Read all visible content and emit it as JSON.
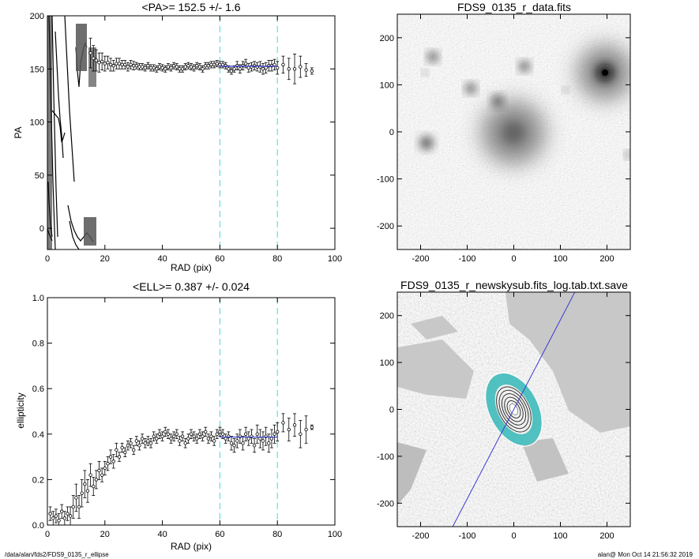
{
  "footer": {
    "path": "/data/alan/fds2/FDS9_0135_r_ellipse",
    "stamp": "alan@  Mon Oct 14 21:56:32 2019"
  },
  "colors": {
    "fit_line": "#3a3ad0",
    "range_marker": "#66dddd",
    "data_points": "#000000",
    "teal_ellipse": "#50c0c0"
  },
  "chart_data": [
    {
      "id": "pa_profile",
      "type": "scatter",
      "title": "<PA>= 152.5 +/-   1.6",
      "xlabel": "RAD (pix)",
      "ylabel": "PA",
      "xlim": [
        0,
        100
      ],
      "ylim": [
        -20,
        200
      ],
      "xticks": [
        "0",
        "20",
        "40",
        "60",
        "80",
        "100"
      ],
      "yticks": [
        "0",
        "50",
        "100",
        "150",
        "200"
      ],
      "xtick_values": [
        0,
        20,
        40,
        60,
        80,
        100
      ],
      "ytick_values": [
        0,
        50,
        100,
        150,
        200
      ],
      "fit_range": [
        60,
        80
      ],
      "fit_value": 152.5,
      "outer_points": {
        "x": [
          15,
          16,
          17,
          18,
          19,
          20,
          21,
          22,
          23,
          24,
          25,
          26,
          27,
          28,
          29,
          30,
          31,
          32,
          33,
          34,
          35,
          36,
          37,
          38,
          39,
          40,
          41,
          42,
          43,
          44,
          45,
          46,
          47,
          48,
          49,
          50,
          51,
          52,
          53,
          54,
          55,
          56,
          57,
          58,
          59,
          60,
          61,
          62,
          63,
          64,
          65,
          66,
          67,
          68,
          69,
          70,
          71,
          72,
          73,
          74,
          75,
          76,
          77,
          78,
          79,
          80,
          82,
          84,
          86,
          88,
          90,
          92
        ],
        "y": [
          165,
          160,
          158,
          156,
          157,
          155,
          156,
          154,
          153,
          155,
          155,
          154,
          154,
          152,
          154,
          153,
          153,
          152,
          152,
          151,
          153,
          151,
          151,
          150,
          152,
          151,
          150,
          152,
          151,
          153,
          152,
          150,
          150,
          152,
          153,
          152,
          151,
          153,
          152,
          150,
          153,
          153,
          154,
          154,
          155,
          154,
          154,
          153,
          150,
          148,
          150,
          153,
          150,
          153,
          155,
          151,
          152,
          153,
          152,
          152,
          150,
          151,
          153,
          153,
          154,
          151,
          154,
          150,
          150,
          152,
          149,
          148
        ],
        "err": [
          14,
          12,
          10,
          9,
          8,
          7,
          6,
          6,
          5,
          5,
          5,
          4,
          4,
          4,
          4,
          4,
          3,
          3,
          3,
          3,
          3,
          3,
          3,
          3,
          3,
          3,
          3,
          3,
          3,
          3,
          3,
          3,
          3,
          3,
          3,
          3,
          3,
          3,
          3,
          3,
          3,
          3,
          3,
          3,
          3,
          3,
          3,
          3,
          3,
          3,
          3,
          4,
          4,
          4,
          4,
          4,
          4,
          4,
          4,
          5,
          5,
          5,
          5,
          5,
          5,
          6,
          8,
          10,
          14,
          10,
          6,
          3
        ]
      }
    },
    {
      "id": "image_data",
      "type": "heatmap",
      "title": "FDS9_0135_r_data.fits",
      "xlim": [
        -250,
        250
      ],
      "ylim": [
        -250,
        250
      ],
      "xticks": [
        "-200",
        "-100",
        "0",
        "100",
        "200"
      ],
      "yticks": [
        "-200",
        "-100",
        "0",
        "100",
        "200"
      ],
      "xtick_values": [
        -200,
        -100,
        0,
        100,
        200
      ],
      "ytick_values": [
        -200,
        -100,
        0,
        100,
        200
      ],
      "colormap": "grayscale-inverted"
    },
    {
      "id": "ell_profile",
      "type": "scatter",
      "title": "<ELL>= 0.387 +/-  0.024",
      "xlabel": "RAD (pix)",
      "ylabel": "ellipticity",
      "xlim": [
        0,
        100
      ],
      "ylim": [
        0,
        1
      ],
      "xticks": [
        "0",
        "20",
        "40",
        "60",
        "80",
        "100"
      ],
      "yticks": [
        "0.0",
        "0.2",
        "0.4",
        "0.6",
        "0.8",
        "1.0"
      ],
      "xtick_values": [
        0,
        20,
        40,
        60,
        80,
        100
      ],
      "ytick_values": [
        0,
        0.2,
        0.4,
        0.6,
        0.8,
        1.0
      ],
      "fit_range": [
        60,
        80
      ],
      "fit_value": 0.387,
      "points": {
        "x": [
          1,
          2,
          3,
          4,
          5,
          6,
          7,
          8,
          9,
          10,
          11,
          12,
          13,
          14,
          15,
          16,
          17,
          18,
          19,
          20,
          21,
          22,
          23,
          24,
          25,
          26,
          27,
          28,
          29,
          30,
          31,
          32,
          33,
          34,
          35,
          36,
          37,
          38,
          39,
          40,
          41,
          42,
          43,
          44,
          45,
          46,
          47,
          48,
          49,
          50,
          51,
          52,
          53,
          54,
          55,
          56,
          57,
          58,
          59,
          60,
          61,
          62,
          63,
          64,
          65,
          66,
          67,
          68,
          69,
          70,
          71,
          72,
          73,
          74,
          75,
          76,
          77,
          78,
          79,
          80,
          82,
          84,
          86,
          88,
          90,
          92
        ],
        "y": [
          0.05,
          0.03,
          0.04,
          0.02,
          0.06,
          0.03,
          0.05,
          0.04,
          0.08,
          0.12,
          0.08,
          0.14,
          0.18,
          0.15,
          0.22,
          0.17,
          0.2,
          0.24,
          0.22,
          0.25,
          0.27,
          0.3,
          0.28,
          0.33,
          0.3,
          0.34,
          0.32,
          0.35,
          0.36,
          0.33,
          0.37,
          0.35,
          0.38,
          0.36,
          0.37,
          0.36,
          0.39,
          0.38,
          0.4,
          0.39,
          0.41,
          0.4,
          0.38,
          0.39,
          0.4,
          0.37,
          0.39,
          0.36,
          0.38,
          0.4,
          0.39,
          0.38,
          0.4,
          0.39,
          0.41,
          0.38,
          0.39,
          0.37,
          0.4,
          0.41,
          0.4,
          0.38,
          0.39,
          0.36,
          0.35,
          0.37,
          0.39,
          0.36,
          0.4,
          0.38,
          0.39,
          0.35,
          0.4,
          0.38,
          0.37,
          0.39,
          0.36,
          0.38,
          0.4,
          0.41,
          0.45,
          0.42,
          0.44,
          0.4,
          0.42,
          0.43
        ],
        "err": [
          0.03,
          0.03,
          0.03,
          0.03,
          0.03,
          0.03,
          0.03,
          0.04,
          0.05,
          0.06,
          0.05,
          0.06,
          0.06,
          0.05,
          0.05,
          0.04,
          0.04,
          0.04,
          0.03,
          0.03,
          0.03,
          0.03,
          0.03,
          0.03,
          0.02,
          0.02,
          0.02,
          0.02,
          0.02,
          0.02,
          0.02,
          0.02,
          0.02,
          0.02,
          0.02,
          0.02,
          0.02,
          0.02,
          0.02,
          0.02,
          0.02,
          0.02,
          0.02,
          0.02,
          0.02,
          0.02,
          0.02,
          0.02,
          0.02,
          0.02,
          0.02,
          0.02,
          0.02,
          0.02,
          0.02,
          0.02,
          0.02,
          0.02,
          0.02,
          0.02,
          0.02,
          0.02,
          0.02,
          0.03,
          0.03,
          0.03,
          0.03,
          0.03,
          0.03,
          0.03,
          0.03,
          0.03,
          0.04,
          0.04,
          0.04,
          0.04,
          0.04,
          0.04,
          0.04,
          0.04,
          0.04,
          0.05,
          0.05,
          0.06,
          0.06,
          0.01
        ]
      }
    },
    {
      "id": "image_model",
      "type": "heatmap",
      "title": "FDS9_0135_r_newskysub.fits_log.tab.txt.save",
      "xlim": [
        -250,
        250
      ],
      "ylim": [
        -250,
        250
      ],
      "xticks": [
        "-200",
        "-100",
        "0",
        "100",
        "200"
      ],
      "yticks": [
        "-200",
        "-100",
        "0",
        "100",
        "200"
      ],
      "xtick_values": [
        -200,
        -100,
        0,
        100,
        200
      ],
      "ytick_values": [
        -200,
        -100,
        0,
        100,
        200
      ],
      "colormap": "grayscale-log",
      "major_axis_pa": 152.5,
      "ellipticity": 0.387
    }
  ]
}
